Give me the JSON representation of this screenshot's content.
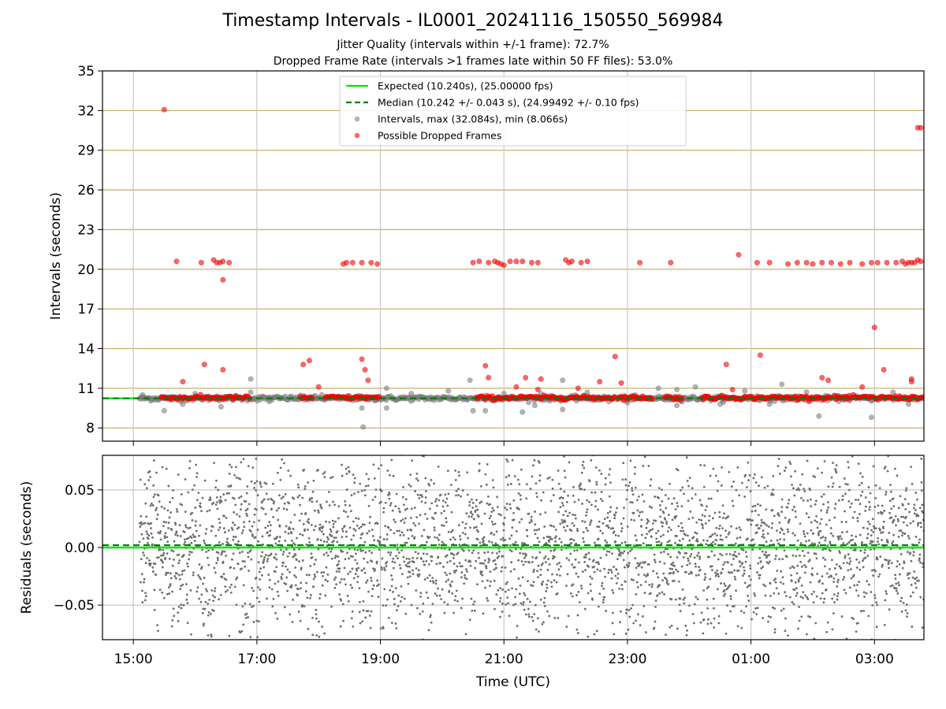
{
  "figure": {
    "title": "Timestamp Intervals - IL0001_20241116_150550_569984",
    "subtitle_jitter": "Jitter Quality (intervals within +/-1 frame): 72.7%",
    "subtitle_dropped": "Dropped Frame Rate (intervals >1 frames late within 50 FF files): 53.0%",
    "colors": {
      "expected": "#00e600",
      "median": "#007f00",
      "intervals": "#808080",
      "dropped": "#ff0000",
      "hgrid_top": "#c8b26e",
      "grid": "#c8c8c8"
    }
  },
  "chart_data": [
    {
      "type": "scatter",
      "panel": "intervals",
      "ylabel": "Intervals (seconds)",
      "ylim": [
        7,
        35
      ],
      "y_ticks": [
        8,
        11,
        14,
        17,
        20,
        23,
        26,
        29,
        32,
        35
      ],
      "xlim_hours": [
        14.5,
        27.8
      ],
      "x_ticks": [
        15,
        17,
        19,
        21,
        23,
        25,
        27
      ],
      "x_tick_labels": [
        "15:00",
        "17:00",
        "19:00",
        "21:00",
        "23:00",
        "01:00",
        "03:00"
      ],
      "grid": "on",
      "legend_position": "top-center",
      "legend": {
        "expected": "Expected (10.240s), (25.00000 fps)",
        "median": "Median (10.242 +/- 0.043 s), (24.99492 +/- 0.10 fps)",
        "intervals": "Intervals, max (32.084s), min (8.066s)",
        "dropped": "Possible Dropped Frames"
      },
      "expected_value": 10.24,
      "median_value": 10.242,
      "intervals_band": {
        "x_start": 15.1,
        "x_end": 27.8,
        "center": 10.24
      },
      "dropped_band_segments": [
        [
          15.45,
          16.9
        ],
        [
          17.7,
          17.9
        ],
        [
          18.1,
          19.0
        ],
        [
          20.55,
          22.8
        ],
        [
          22.85,
          23.4
        ],
        [
          23.6,
          23.9
        ],
        [
          24.2,
          26.3
        ],
        [
          26.35,
          27.8
        ]
      ],
      "intervals_outliers": [
        [
          15.15,
          10.5
        ],
        [
          15.5,
          9.3
        ],
        [
          15.8,
          9.8
        ],
        [
          16.0,
          10.6
        ],
        [
          16.35,
          10.4
        ],
        [
          16.42,
          9.6
        ],
        [
          16.9,
          10.7
        ],
        [
          16.9,
          11.7
        ],
        [
          17.2,
          10.0
        ],
        [
          18.05,
          10.5
        ],
        [
          18.7,
          9.5
        ],
        [
          18.72,
          8.07
        ],
        [
          19.1,
          11.0
        ],
        [
          19.1,
          9.5
        ],
        [
          19.5,
          10.6
        ],
        [
          20.1,
          10.8
        ],
        [
          20.45,
          11.6
        ],
        [
          20.5,
          9.3
        ],
        [
          20.7,
          9.3
        ],
        [
          21.0,
          10.6
        ],
        [
          21.3,
          9.2
        ],
        [
          21.5,
          9.7
        ],
        [
          21.6,
          10.6
        ],
        [
          21.95,
          11.6
        ],
        [
          21.95,
          9.4
        ],
        [
          22.35,
          10.7
        ],
        [
          22.7,
          10.0
        ],
        [
          23.0,
          9.9
        ],
        [
          23.5,
          11.0
        ],
        [
          23.8,
          9.7
        ],
        [
          23.8,
          10.9
        ],
        [
          24.1,
          11.1
        ],
        [
          24.5,
          9.8
        ],
        [
          24.9,
          10.8
        ],
        [
          25.3,
          9.8
        ],
        [
          25.5,
          11.3
        ],
        [
          25.9,
          10.7
        ],
        [
          26.1,
          8.9
        ],
        [
          26.5,
          10.3
        ],
        [
          26.95,
          8.8
        ],
        [
          27.3,
          10.7
        ],
        [
          27.55,
          9.8
        ]
      ],
      "dropped_points": [
        [
          15.5,
          32.07
        ],
        [
          15.7,
          20.6
        ],
        [
          16.1,
          20.5
        ],
        [
          16.3,
          20.7
        ],
        [
          16.35,
          20.5
        ],
        [
          16.4,
          20.5
        ],
        [
          16.45,
          20.6
        ],
        [
          16.55,
          20.5
        ],
        [
          16.45,
          19.2
        ],
        [
          15.8,
          11.5
        ],
        [
          16.15,
          12.8
        ],
        [
          16.45,
          12.4
        ],
        [
          17.75,
          12.8
        ],
        [
          17.85,
          13.1
        ],
        [
          18.0,
          11.1
        ],
        [
          18.4,
          20.4
        ],
        [
          18.45,
          20.5
        ],
        [
          18.55,
          20.5
        ],
        [
          18.7,
          20.5
        ],
        [
          18.85,
          20.5
        ],
        [
          18.95,
          20.4
        ],
        [
          18.7,
          13.2
        ],
        [
          18.75,
          12.4
        ],
        [
          18.8,
          11.6
        ],
        [
          20.5,
          20.5
        ],
        [
          20.6,
          20.6
        ],
        [
          20.75,
          20.5
        ],
        [
          20.85,
          20.6
        ],
        [
          20.9,
          20.5
        ],
        [
          20.95,
          20.4
        ],
        [
          21.0,
          20.3
        ],
        [
          21.1,
          20.6
        ],
        [
          21.2,
          20.6
        ],
        [
          21.3,
          20.6
        ],
        [
          21.45,
          20.5
        ],
        [
          21.55,
          20.5
        ],
        [
          20.7,
          12.7
        ],
        [
          20.75,
          11.8
        ],
        [
          21.35,
          11.8
        ],
        [
          21.6,
          11.7
        ],
        [
          21.55,
          10.9
        ],
        [
          21.2,
          11.1
        ],
        [
          22.0,
          20.7
        ],
        [
          22.05,
          20.5
        ],
        [
          22.1,
          20.6
        ],
        [
          22.25,
          20.5
        ],
        [
          22.35,
          20.6
        ],
        [
          22.2,
          11.0
        ],
        [
          22.55,
          11.5
        ],
        [
          22.8,
          13.4
        ],
        [
          22.9,
          11.4
        ],
        [
          23.2,
          20.5
        ],
        [
          23.7,
          20.5
        ],
        [
          24.6,
          12.8
        ],
        [
          24.7,
          10.9
        ],
        [
          24.8,
          21.1
        ],
        [
          25.1,
          20.5
        ],
        [
          25.3,
          20.5
        ],
        [
          25.15,
          13.5
        ],
        [
          25.6,
          20.4
        ],
        [
          25.75,
          20.5
        ],
        [
          25.9,
          20.5
        ],
        [
          26.0,
          20.4
        ],
        [
          26.15,
          20.5
        ],
        [
          26.3,
          20.5
        ],
        [
          26.45,
          20.4
        ],
        [
          26.6,
          20.5
        ],
        [
          26.8,
          20.4
        ],
        [
          26.95,
          20.5
        ],
        [
          26.15,
          11.8
        ],
        [
          26.25,
          11.6
        ],
        [
          26.8,
          11.1
        ],
        [
          27.0,
          15.6
        ],
        [
          27.15,
          12.4
        ],
        [
          27.05,
          20.5
        ],
        [
          27.2,
          20.5
        ],
        [
          27.35,
          20.5
        ],
        [
          27.45,
          20.6
        ],
        [
          27.5,
          20.4
        ],
        [
          27.55,
          20.5
        ],
        [
          27.6,
          20.5
        ],
        [
          27.65,
          20.5
        ],
        [
          27.7,
          20.7
        ],
        [
          27.75,
          20.6
        ],
        [
          27.6,
          11.7
        ],
        [
          27.6,
          11.5
        ],
        [
          27.7,
          30.7
        ],
        [
          27.75,
          30.7
        ]
      ]
    },
    {
      "type": "scatter",
      "panel": "residuals",
      "xlabel": "Time (UTC)",
      "ylabel": "Residuals (seconds)",
      "ylim": [
        -0.08,
        0.08
      ],
      "y_ticks": [
        0.05,
        0.0,
        -0.05
      ],
      "y_tick_labels": [
        "0.05",
        "0.00",
        "−0.05"
      ],
      "xlim_hours": [
        14.5,
        27.8
      ],
      "x_ticks": [
        15,
        17,
        19,
        21,
        23,
        25,
        27
      ],
      "x_tick_labels": [
        "15:00",
        "17:00",
        "19:00",
        "21:00",
        "23:00",
        "01:00",
        "03:00"
      ],
      "grid": "on",
      "expected_residual": 0.0,
      "median_residual": 0.002,
      "residuals_spread": {
        "x_start": 15.1,
        "x_end": 27.8,
        "center": 0.0,
        "approx_sigma": 0.04
      }
    }
  ]
}
